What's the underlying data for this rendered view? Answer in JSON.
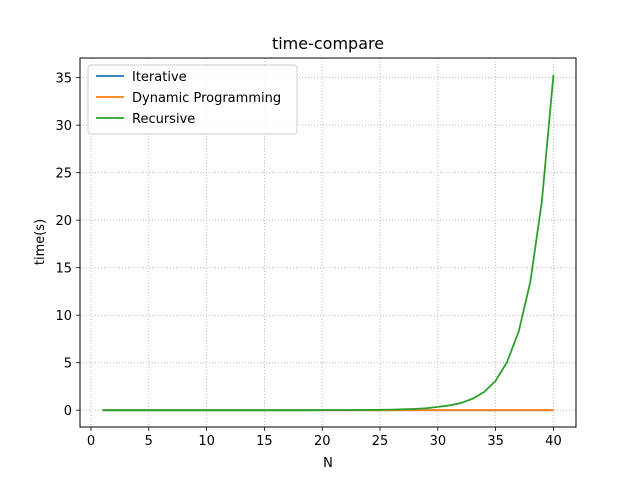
{
  "chart_data": {
    "type": "line",
    "title": "time-compare",
    "xlabel": "N",
    "ylabel": "time(s)",
    "xlim": [
      -0.95,
      41.95
    ],
    "ylim": [
      -1.77,
      37.07
    ],
    "xticks": [
      0,
      5,
      10,
      15,
      20,
      25,
      30,
      35,
      40
    ],
    "yticks": [
      0,
      5,
      10,
      15,
      20,
      25,
      30,
      35
    ],
    "grid": true,
    "legend_position": "upper left",
    "series": [
      {
        "name": "Iterative",
        "color": "#1f77b4",
        "x": [
          1,
          2,
          3,
          4,
          5,
          6,
          7,
          8,
          9,
          10,
          11,
          12,
          13,
          14,
          15,
          16,
          17,
          18,
          19,
          20,
          21,
          22,
          23,
          24,
          25,
          26,
          27,
          28,
          29,
          30,
          31,
          32,
          33,
          34,
          35,
          36,
          37,
          38,
          39,
          40
        ],
        "values": [
          0,
          0,
          0,
          0,
          0,
          0,
          0,
          0,
          0,
          0,
          0,
          0,
          0,
          0,
          0,
          0,
          0,
          0,
          0,
          0,
          0,
          0,
          0,
          0,
          0,
          0,
          0,
          0,
          0,
          0,
          0,
          0,
          0,
          0,
          0,
          0,
          0,
          0,
          0,
          0
        ]
      },
      {
        "name": "Dynamic Programming",
        "color": "#ff7f0e",
        "x": [
          1,
          2,
          3,
          4,
          5,
          6,
          7,
          8,
          9,
          10,
          11,
          12,
          13,
          14,
          15,
          16,
          17,
          18,
          19,
          20,
          21,
          22,
          23,
          24,
          25,
          26,
          27,
          28,
          29,
          30,
          31,
          32,
          33,
          34,
          35,
          36,
          37,
          38,
          39,
          40
        ],
        "values": [
          0,
          0,
          0,
          0,
          0,
          0,
          0,
          0,
          0,
          0,
          0,
          0,
          0,
          0,
          0,
          0,
          0,
          0,
          0,
          0,
          0,
          0,
          0,
          0,
          0,
          0,
          0,
          0,
          0,
          0,
          0,
          0,
          0,
          0,
          0,
          0,
          0,
          0,
          0,
          0
        ]
      },
      {
        "name": "Recursive",
        "color": "#2ca02c",
        "x": [
          1,
          2,
          3,
          4,
          5,
          6,
          7,
          8,
          9,
          10,
          11,
          12,
          13,
          14,
          15,
          16,
          17,
          18,
          19,
          20,
          21,
          22,
          23,
          24,
          25,
          26,
          27,
          28,
          29,
          30,
          31,
          32,
          33,
          34,
          35,
          36,
          37,
          38,
          39,
          40
        ],
        "values": [
          0,
          0,
          0,
          0,
          0,
          0,
          0,
          0,
          0,
          0,
          0,
          0,
          0,
          0,
          0,
          0,
          0,
          0.001,
          0.002,
          0.004,
          0.006,
          0.01,
          0.015,
          0.02,
          0.04,
          0.06,
          0.09,
          0.13,
          0.2,
          0.35,
          0.5,
          0.75,
          1.2,
          1.9,
          3.1,
          5.1,
          8.3,
          13.5,
          22.0,
          35.3
        ]
      }
    ]
  }
}
